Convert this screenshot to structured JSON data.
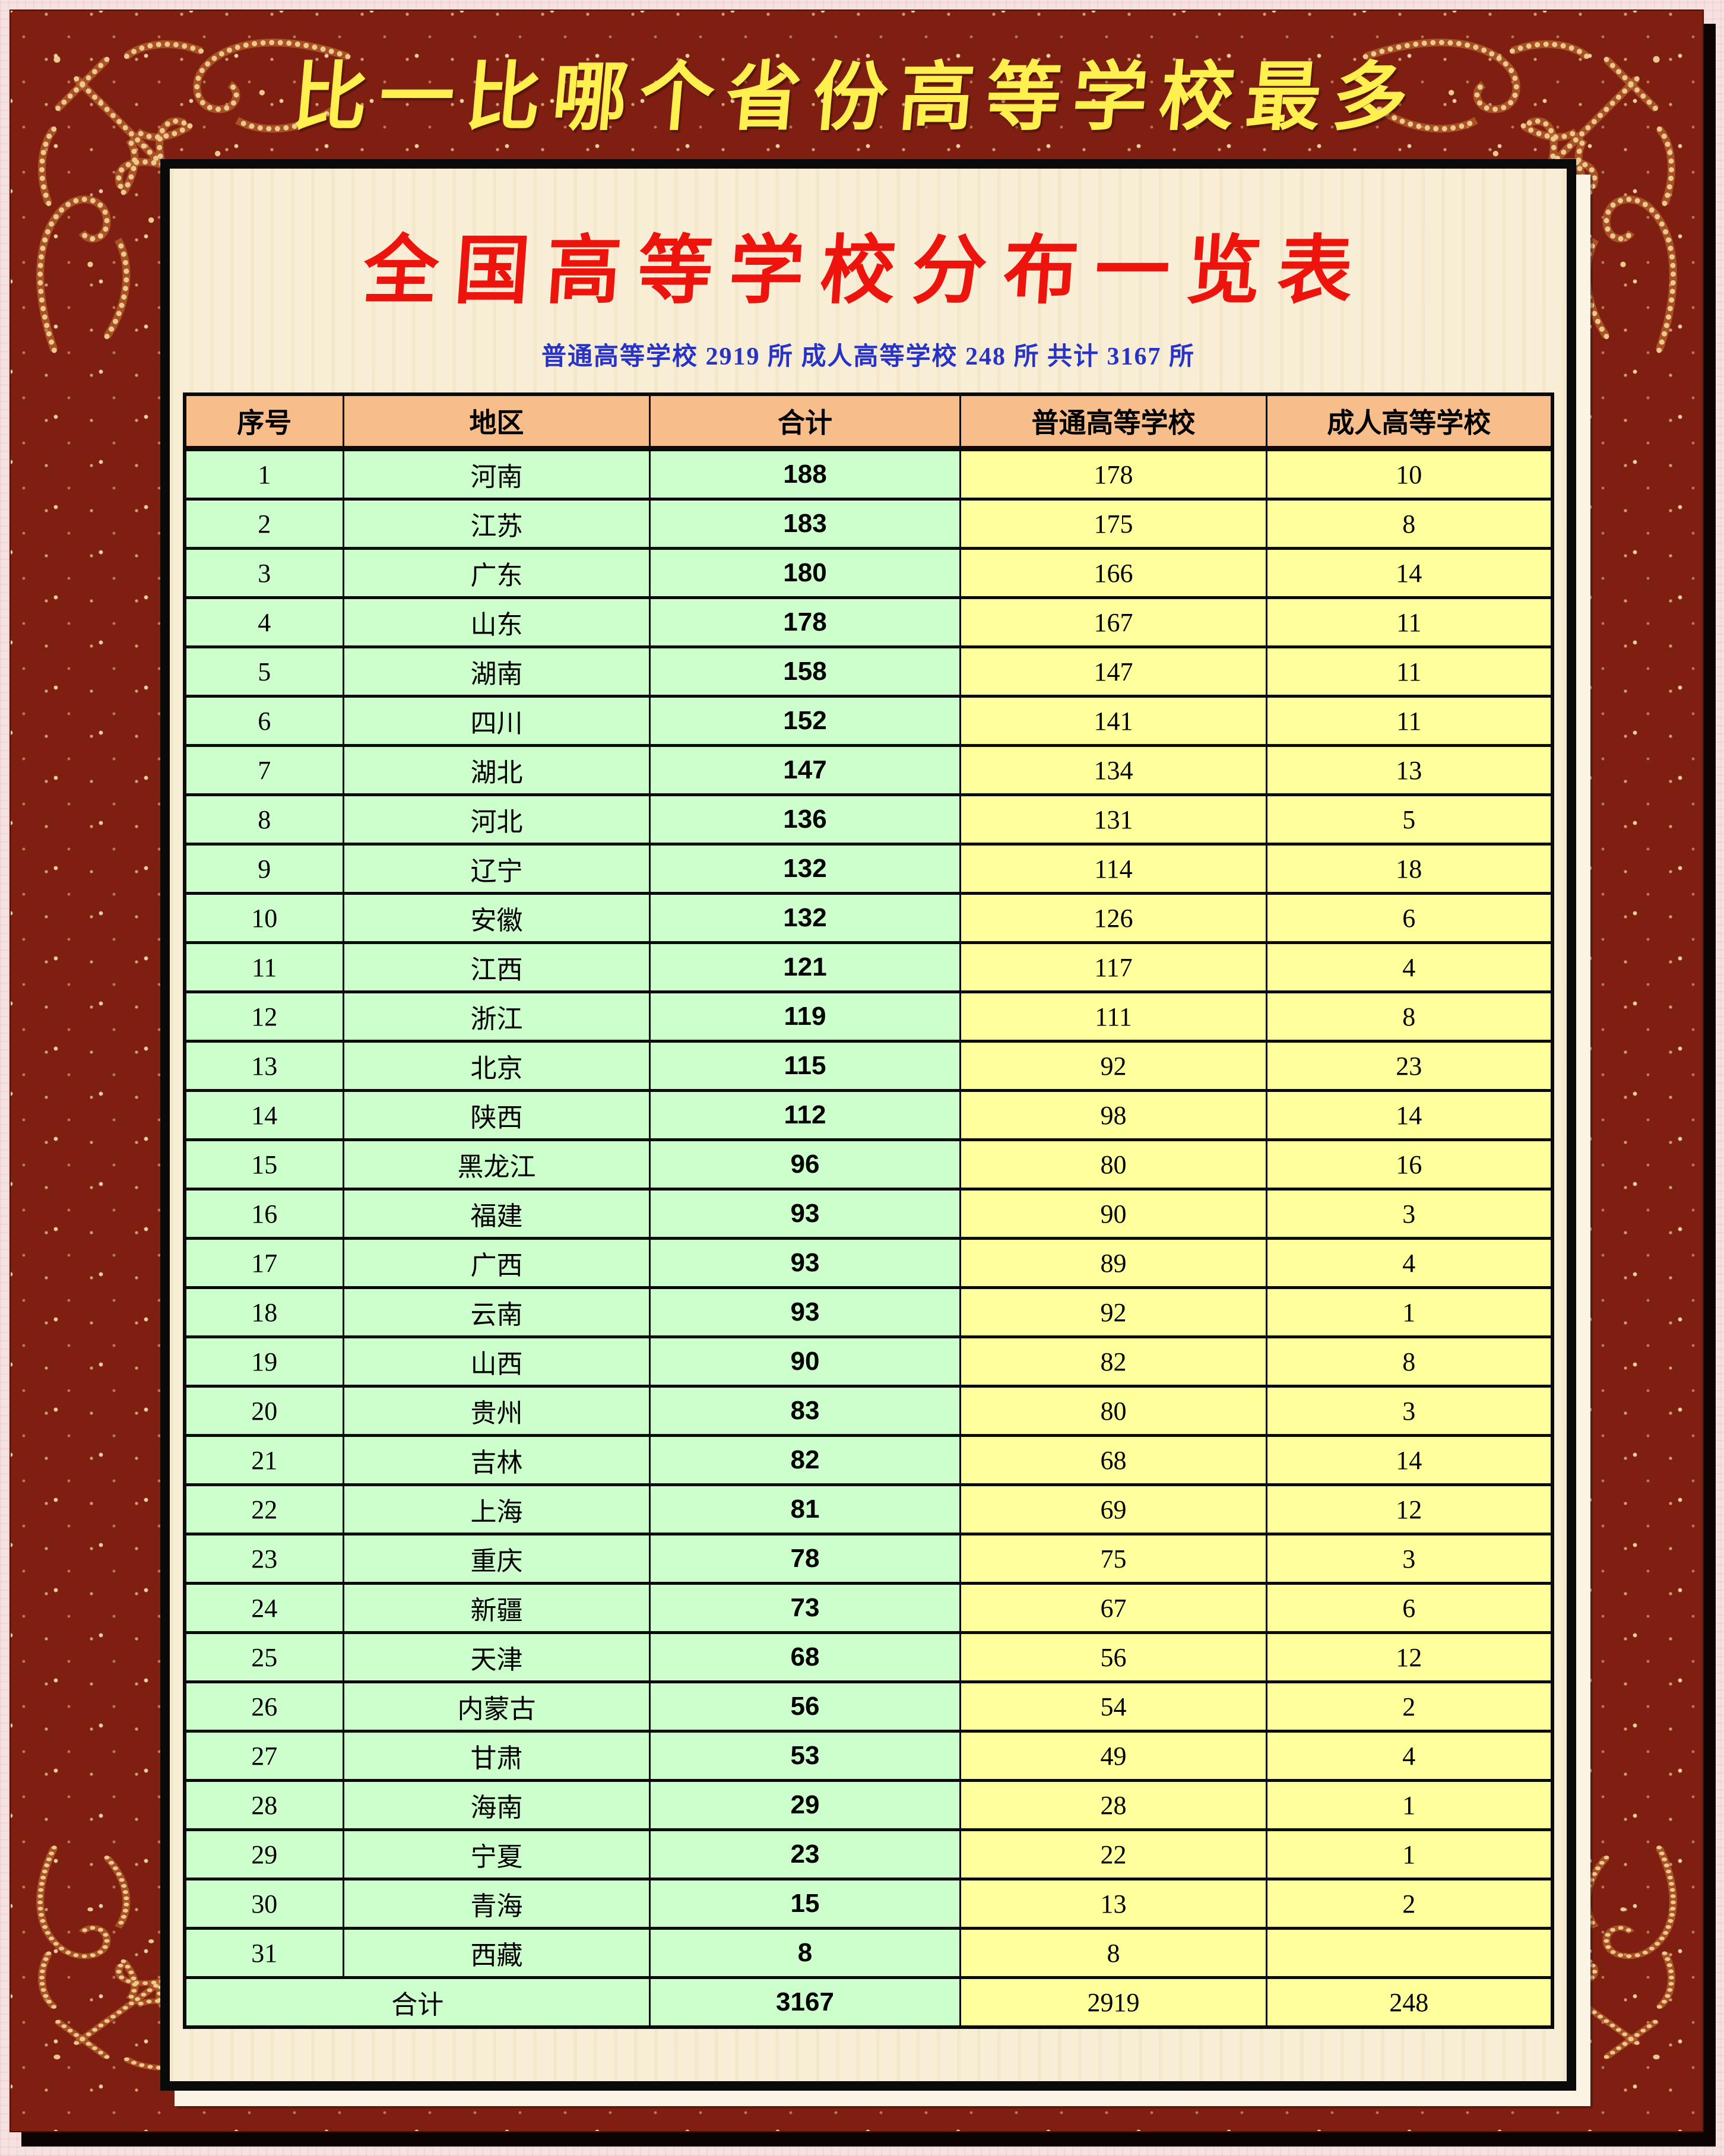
{
  "banner": {
    "text": "比一比哪个省份高等学校最多"
  },
  "poster": {
    "title": "全国高等学校分布一览表",
    "subtitle": "普通高等学校 2919 所  成人高等学校 248 所  共计 3167 所"
  },
  "table": {
    "headers": [
      "序号",
      "地区",
      "合计",
      "普通高等学校",
      "成人高等学校"
    ],
    "rows": [
      {
        "no": "1",
        "region": "河南",
        "total": "188",
        "regular": "178",
        "adult": "10"
      },
      {
        "no": "2",
        "region": "江苏",
        "total": "183",
        "regular": "175",
        "adult": "8"
      },
      {
        "no": "3",
        "region": "广东",
        "total": "180",
        "regular": "166",
        "adult": "14"
      },
      {
        "no": "4",
        "region": "山东",
        "total": "178",
        "regular": "167",
        "adult": "11"
      },
      {
        "no": "5",
        "region": "湖南",
        "total": "158",
        "regular": "147",
        "adult": "11"
      },
      {
        "no": "6",
        "region": "四川",
        "total": "152",
        "regular": "141",
        "adult": "11"
      },
      {
        "no": "7",
        "region": "湖北",
        "total": "147",
        "regular": "134",
        "adult": "13"
      },
      {
        "no": "8",
        "region": "河北",
        "total": "136",
        "regular": "131",
        "adult": "5"
      },
      {
        "no": "9",
        "region": "辽宁",
        "total": "132",
        "regular": "114",
        "adult": "18"
      },
      {
        "no": "10",
        "region": "安徽",
        "total": "132",
        "regular": "126",
        "adult": "6"
      },
      {
        "no": "11",
        "region": "江西",
        "total": "121",
        "regular": "117",
        "adult": "4"
      },
      {
        "no": "12",
        "region": "浙江",
        "total": "119",
        "regular": "111",
        "adult": "8"
      },
      {
        "no": "13",
        "region": "北京",
        "total": "115",
        "regular": "92",
        "adult": "23"
      },
      {
        "no": "14",
        "region": "陕西",
        "total": "112",
        "regular": "98",
        "adult": "14"
      },
      {
        "no": "15",
        "region": "黑龙江",
        "total": "96",
        "regular": "80",
        "adult": "16"
      },
      {
        "no": "16",
        "region": "福建",
        "total": "93",
        "regular": "90",
        "adult": "3"
      },
      {
        "no": "17",
        "region": "广西",
        "total": "93",
        "regular": "89",
        "adult": "4"
      },
      {
        "no": "18",
        "region": "云南",
        "total": "93",
        "regular": "92",
        "adult": "1"
      },
      {
        "no": "19",
        "region": "山西",
        "total": "90",
        "regular": "82",
        "adult": "8"
      },
      {
        "no": "20",
        "region": "贵州",
        "total": "83",
        "regular": "80",
        "adult": "3"
      },
      {
        "no": "21",
        "region": "吉林",
        "total": "82",
        "regular": "68",
        "adult": "14"
      },
      {
        "no": "22",
        "region": "上海",
        "total": "81",
        "regular": "69",
        "adult": "12"
      },
      {
        "no": "23",
        "region": "重庆",
        "total": "78",
        "regular": "75",
        "adult": "3"
      },
      {
        "no": "24",
        "region": "新疆",
        "total": "73",
        "regular": "67",
        "adult": "6"
      },
      {
        "no": "25",
        "region": "天津",
        "total": "68",
        "regular": "56",
        "adult": "12"
      },
      {
        "no": "26",
        "region": "内蒙古",
        "total": "56",
        "regular": "54",
        "adult": "2"
      },
      {
        "no": "27",
        "region": "甘肃",
        "total": "53",
        "regular": "49",
        "adult": "4"
      },
      {
        "no": "28",
        "region": "海南",
        "total": "29",
        "regular": "28",
        "adult": "1"
      },
      {
        "no": "29",
        "region": "宁夏",
        "total": "23",
        "regular": "22",
        "adult": "1"
      },
      {
        "no": "30",
        "region": "青海",
        "total": "15",
        "regular": "13",
        "adult": "2"
      },
      {
        "no": "31",
        "region": "西藏",
        "total": "8",
        "regular": "8",
        "adult": ""
      }
    ],
    "footer": {
      "label": "合计",
      "total": "3167",
      "regular": "2919",
      "adult": "248"
    }
  },
  "colors": {
    "frame_maroon": "#7E1F12",
    "outer_edge_pink": "#F6E1E1",
    "ornament_gold": "#F3D296",
    "banner_yellow": "#FFEF4F",
    "panel_cream": "#F8EED6",
    "title_red": "#EC140C",
    "subtitle_blue": "#2733C6",
    "header_peach": "#F7BE8C",
    "cell_green": "#CCFFCC",
    "cell_yellow": "#FFFF9C",
    "total_blue": "#0713E8",
    "border_black": "#0B0B0B"
  }
}
